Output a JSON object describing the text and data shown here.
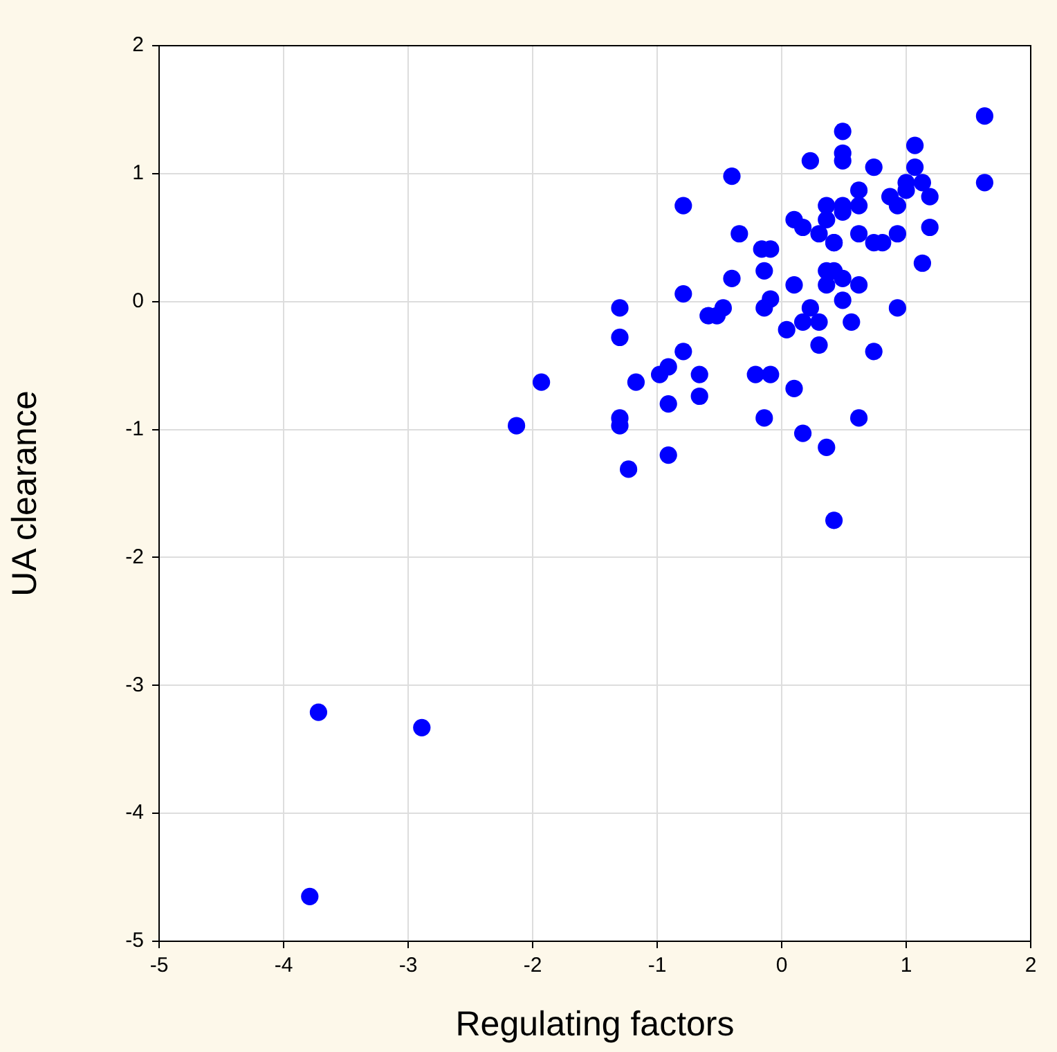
{
  "chart_data": {
    "type": "scatter",
    "xlabel": "Regulating factors",
    "ylabel": "UA clearance",
    "xlim": [
      -5,
      2
    ],
    "ylim": [
      -5,
      2
    ],
    "xticks": [
      -5,
      -4,
      -3,
      -2,
      -1,
      0,
      1,
      2
    ],
    "yticks": [
      -5,
      -4,
      -3,
      -2,
      -1,
      0,
      1,
      2
    ],
    "grid": true,
    "legend": false,
    "marker": "circle",
    "series": [
      {
        "color": "#0000ff",
        "x": [
          -3.79,
          -3.72,
          -2.89,
          -2.13,
          -1.93,
          -1.3,
          -1.3,
          -1.3,
          -1.3,
          -1.23,
          -1.17,
          -0.98,
          -0.91,
          -0.91,
          -0.91,
          -0.79,
          -0.79,
          -0.79,
          -0.66,
          -0.66,
          -0.59,
          -0.52,
          -0.47,
          -0.4,
          -0.4,
          -0.34,
          -0.21,
          -0.16,
          -0.14,
          -0.14,
          -0.14,
          -0.09,
          -0.09,
          -0.09,
          0.04,
          0.1,
          0.1,
          0.1,
          0.17,
          0.17,
          0.17,
          0.23,
          0.23,
          0.3,
          0.3,
          0.3,
          0.36,
          0.36,
          0.36,
          0.36,
          0.36,
          0.42,
          0.42,
          0.42,
          0.42,
          0.49,
          0.49,
          0.49,
          0.49,
          0.49,
          0.49,
          0.49,
          0.56,
          0.62,
          0.62,
          0.62,
          0.62,
          0.62,
          0.74,
          0.74,
          0.74,
          0.81,
          0.87,
          0.93,
          0.93,
          0.93,
          1.0,
          1.0,
          1.07,
          1.07,
          1.13,
          1.13,
          1.19,
          1.19,
          1.63,
          1.63
        ],
        "values": [
          -4.65,
          -3.21,
          -3.33,
          -0.97,
          -0.63,
          -0.05,
          -0.28,
          -0.91,
          -0.97,
          -1.31,
          -0.63,
          -0.57,
          -0.51,
          -0.8,
          -1.2,
          0.75,
          0.06,
          -0.39,
          -0.57,
          -0.74,
          -0.11,
          -0.11,
          -0.05,
          0.98,
          0.18,
          0.53,
          -0.57,
          0.41,
          0.24,
          -0.05,
          -0.91,
          0.41,
          0.02,
          -0.57,
          -0.22,
          0.64,
          0.13,
          -0.68,
          0.58,
          -0.16,
          -1.03,
          1.1,
          -0.05,
          0.53,
          -0.16,
          -0.34,
          0.75,
          0.64,
          0.24,
          0.13,
          -1.14,
          0.46,
          0.24,
          -1.71,
          0.46,
          1.33,
          1.16,
          1.1,
          0.75,
          0.7,
          0.18,
          0.01,
          -0.16,
          0.87,
          0.75,
          0.53,
          0.13,
          -0.91,
          1.05,
          0.46,
          -0.39,
          0.46,
          0.82,
          0.75,
          0.53,
          -0.05,
          0.93,
          0.87,
          1.22,
          1.05,
          0.93,
          0.3,
          0.82,
          0.58,
          1.45,
          0.93
        ]
      }
    ]
  }
}
